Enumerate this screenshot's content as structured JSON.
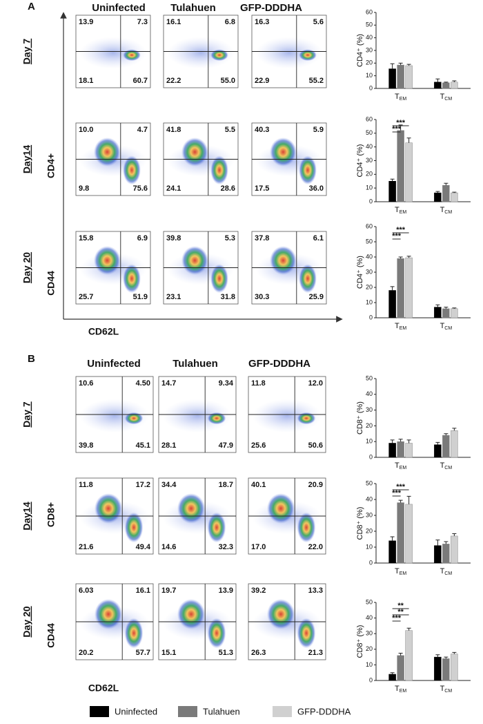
{
  "panels": [
    {
      "label": "A",
      "columns": [
        "Uninfected",
        "Tulahuen",
        "GFP-DDDHA"
      ],
      "marker": "CD4+",
      "y_axis": "CD44",
      "x_axis": "CD62L",
      "rows": [
        {
          "label": "Day 7",
          "quadrants": [
            [
              "13.9",
              "7.3",
              "18.1",
              "60.7"
            ],
            [
              "16.1",
              "6.8",
              "22.2",
              "55.0"
            ],
            [
              "16.3",
              "5.6",
              "22.9",
              "55.2"
            ]
          ]
        },
        {
          "label": "Day14",
          "quadrants": [
            [
              "10.0",
              "4.7",
              "9.8",
              "75.6"
            ],
            [
              "41.8",
              "5.5",
              "24.1",
              "28.6"
            ],
            [
              "40.3",
              "5.9",
              "17.5",
              "36.0"
            ]
          ]
        },
        {
          "label": "Day 20",
          "quadrants": [
            [
              "15.8",
              "6.9",
              "25.7",
              "51.9"
            ],
            [
              "39.8",
              "5.3",
              "23.1",
              "31.8"
            ],
            [
              "37.8",
              "6.1",
              "30.3",
              "25.9"
            ]
          ]
        }
      ]
    },
    {
      "label": "B",
      "columns": [
        "Uninfected",
        "Tulahuen",
        "GFP-DDDHA"
      ],
      "marker": "CD8+",
      "y_axis": "CD44",
      "x_axis": "CD62L",
      "rows": [
        {
          "label": "Day 7",
          "quadrants": [
            [
              "10.6",
              "4.50",
              "39.8",
              "45.1"
            ],
            [
              "14.7",
              "9.34",
              "28.1",
              "47.9"
            ],
            [
              "11.8",
              "12.0",
              "25.6",
              "50.6"
            ]
          ]
        },
        {
          "label": "Day14",
          "quadrants": [
            [
              "11.8",
              "17.2",
              "21.6",
              "49.4"
            ],
            [
              "34.4",
              "18.7",
              "14.6",
              "32.3"
            ],
            [
              "40.1",
              "20.9",
              "17.0",
              "22.0"
            ]
          ]
        },
        {
          "label": "Day 20",
          "quadrants": [
            [
              "6.03",
              "16.1",
              "20.2",
              "57.7"
            ],
            [
              "19.7",
              "13.9",
              "15.1",
              "51.3"
            ],
            [
              "39.2",
              "13.3",
              "26.3",
              "21.3"
            ]
          ]
        }
      ]
    }
  ],
  "legend": [
    {
      "name": "Uninfected",
      "color": "#000000"
    },
    {
      "name": "Tulahuen",
      "color": "#7a7a7a"
    },
    {
      "name": "GFP-DDDHA",
      "color": "#d0d0d0"
    }
  ],
  "chart_data": [
    {
      "type": "bar",
      "y_label": "CD4⁺ (%)",
      "categories": [
        "TEM",
        "TCM"
      ],
      "ylim": [
        0,
        60
      ],
      "yticks": [
        0,
        10,
        20,
        30,
        40,
        50,
        60
      ],
      "annotations": [],
      "series": [
        {
          "values": [
            15.5,
            5
          ],
          "errors": [
            4,
            2.5
          ]
        },
        {
          "values": [
            18.5,
            4.5
          ],
          "errors": [
            1.5,
            0.5
          ]
        },
        {
          "values": [
            18,
            5
          ],
          "errors": [
            1,
            1
          ]
        }
      ]
    },
    {
      "type": "bar",
      "y_label": "CD4⁺ (%)",
      "categories": [
        "TEM",
        "TCM"
      ],
      "ylim": [
        0,
        60
      ],
      "yticks": [
        0,
        10,
        20,
        30,
        40,
        50,
        60
      ],
      "annotations": [
        "***",
        "***"
      ],
      "series": [
        {
          "values": [
            15,
            6.5
          ],
          "errors": [
            1.5,
            1
          ]
        },
        {
          "values": [
            52,
            12
          ],
          "errors": [
            4,
            1.5
          ]
        },
        {
          "values": [
            43,
            6.5
          ],
          "errors": [
            3.5,
            0.5
          ]
        }
      ]
    },
    {
      "type": "bar",
      "y_label": "CD4⁺ (%)",
      "categories": [
        "TEM",
        "TCM"
      ],
      "ylim": [
        0,
        60
      ],
      "yticks": [
        0,
        10,
        20,
        30,
        40,
        50,
        60
      ],
      "annotations": [
        "***",
        "***"
      ],
      "series": [
        {
          "values": [
            18,
            7
          ],
          "errors": [
            2.5,
            1.5
          ]
        },
        {
          "values": [
            39,
            6
          ],
          "errors": [
            1,
            1
          ]
        },
        {
          "values": [
            39.5,
            6
          ],
          "errors": [
            1,
            0.5
          ]
        }
      ]
    },
    {
      "type": "bar",
      "y_label": "CD8⁺ (%)",
      "categories": [
        "TEM",
        "TCM"
      ],
      "ylim": [
        0,
        50
      ],
      "yticks": [
        0,
        10,
        20,
        30,
        40,
        50
      ],
      "annotations": [],
      "series": [
        {
          "values": [
            9,
            8
          ],
          "errors": [
            2,
            1.5
          ]
        },
        {
          "values": [
            10,
            14
          ],
          "errors": [
            1.5,
            1
          ]
        },
        {
          "values": [
            9,
            17
          ],
          "errors": [
            2,
            1.5
          ]
        }
      ]
    },
    {
      "type": "bar",
      "y_label": "CD8⁺ (%)",
      "categories": [
        "TEM",
        "TCM"
      ],
      "ylim": [
        0,
        50
      ],
      "yticks": [
        0,
        10,
        20,
        30,
        40,
        50
      ],
      "annotations": [
        "***",
        "***"
      ],
      "series": [
        {
          "values": [
            14,
            11
          ],
          "errors": [
            2.5,
            3.5
          ]
        },
        {
          "values": [
            38,
            12
          ],
          "errors": [
            1.5,
            1.5
          ]
        },
        {
          "values": [
            37,
            17
          ],
          "errors": [
            5,
            1.5
          ]
        }
      ]
    },
    {
      "type": "bar",
      "y_label": "CD8⁺ (%)",
      "categories": [
        "TEM",
        "TCM"
      ],
      "ylim": [
        0,
        50
      ],
      "yticks": [
        0,
        10,
        20,
        30,
        40,
        50
      ],
      "annotations": [
        "***",
        "**",
        "**"
      ],
      "series": [
        {
          "values": [
            4,
            15
          ],
          "errors": [
            1,
            1.5
          ]
        },
        {
          "values": [
            16,
            14
          ],
          "errors": [
            1.5,
            1
          ]
        },
        {
          "values": [
            32,
            17
          ],
          "errors": [
            1.5,
            1
          ]
        }
      ]
    }
  ]
}
